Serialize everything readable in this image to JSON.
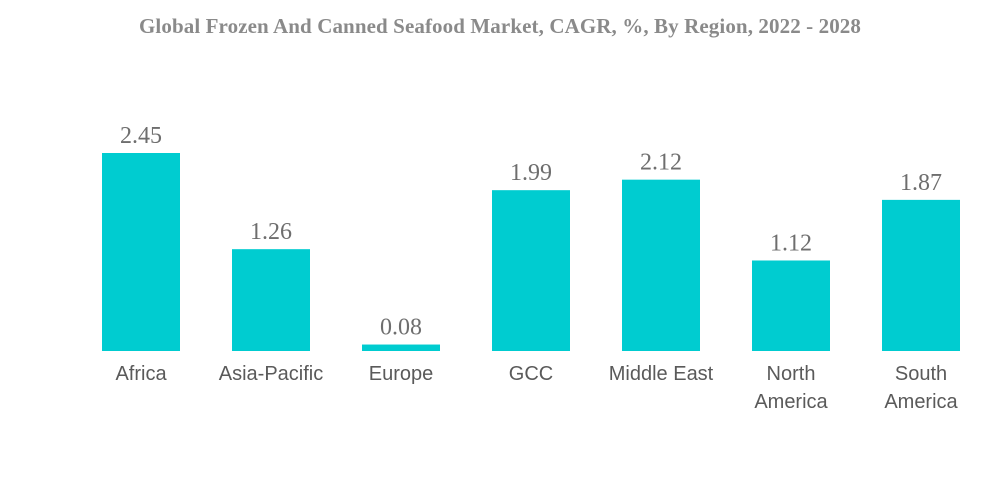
{
  "chart_data": {
    "type": "bar",
    "title": "Global Frozen And Canned Seafood Market, CAGR, %, By Region, 2022 - 2028",
    "categories": [
      [
        "Africa"
      ],
      [
        "Asia-Pacific"
      ],
      [
        "Europe"
      ],
      [
        "GCC"
      ],
      [
        "Middle East"
      ],
      [
        "North",
        "America"
      ],
      [
        "South",
        "America"
      ]
    ],
    "values": [
      2.45,
      1.26,
      0.08,
      1.99,
      2.12,
      1.12,
      1.87
    ],
    "value_labels": [
      "2.45",
      "1.26",
      "0.08",
      "1.99",
      "2.12",
      "1.12",
      "1.87"
    ],
    "ylim": [
      0,
      2.45
    ],
    "grid": false,
    "bar_color": "#00ccd0"
  }
}
